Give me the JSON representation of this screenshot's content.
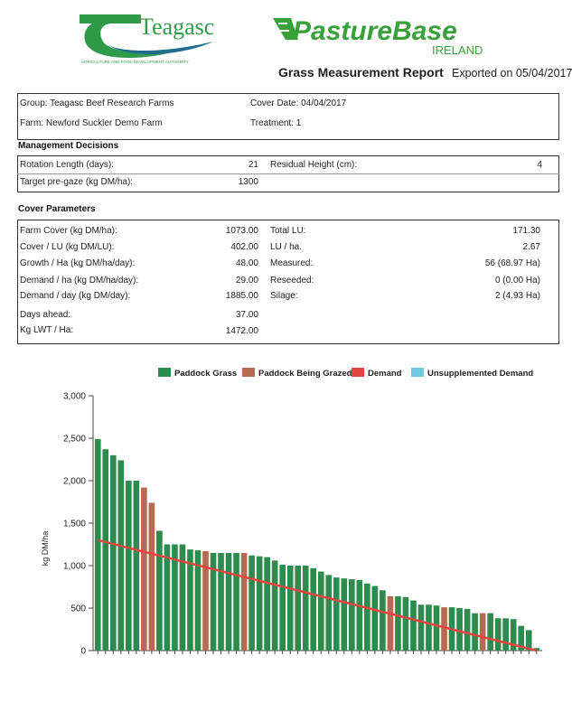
{
  "header": {
    "teagasc_logo_text": "Teagasc",
    "teagasc_tagline": "AGRICULTURE AND FOOD DEVELOPMENT AUTHORITY",
    "pasturebase_logo_text": "PastureBase",
    "pasturebase_sub": "IRELAND",
    "report_title": "Grass Measurement Report",
    "exported": "Exported on 05/04/2017",
    "colors": {
      "teagasc_green": "#2f9a4a",
      "teagasc_blue": "#1f6c8f",
      "pb_green": "#3aa03a"
    }
  },
  "info": {
    "group": "Group: Teagasc Beef Research Farms",
    "farm": "Farm: Newford Suckler Demo Farm",
    "cover_date": "Cover Date: 04/04/2017",
    "treatment": "Treatment: 1"
  },
  "management": {
    "heading": "Management Decisions",
    "rotation_label": "Rotation Length (days):",
    "rotation_value": "21",
    "residual_label": "Residual Height (cm):",
    "residual_value": "4",
    "target_label": "Target pre-gaze (kg DM/ha):",
    "target_value": "1300"
  },
  "cover": {
    "heading": "Cover Parameters",
    "left": [
      {
        "label": "Farm Cover (kg DM/ha):",
        "value": "1073.00"
      },
      {
        "label": "Cover / LU (kg DM/LU):",
        "value": "402.00"
      },
      {
        "label": "Growth / Ha (kg DM/ha/day):",
        "value": "48.00"
      },
      {
        "label": "Demand / ha (kg DM/ha/day):",
        "value": "29.00"
      },
      {
        "label": "Demand / day (kg DM/day):",
        "value": "1885.00"
      },
      {
        "label": "Days ahead:",
        "value": "37.00"
      },
      {
        "label": "Kg LWT / Ha:",
        "value": "1472.00"
      }
    ],
    "right": [
      {
        "label": "Total LU:",
        "value": "171.30"
      },
      {
        "label": "LU / ha.",
        "value": "2.67"
      },
      {
        "label": "Measured:",
        "value": "56 (68.97 Ha)"
      },
      {
        "label": "Reseeded:",
        "value": "0 (0.00 Ha)"
      },
      {
        "label": "Silage:",
        "value": "2 (4.93 Ha)"
      }
    ]
  },
  "chart_data": {
    "type": "bar",
    "legend": [
      "Paddock Grass",
      "Paddock Being Grazed",
      "Demand",
      "Unsupplemented Demand"
    ],
    "legend_placement": "top",
    "ylabel": "kg DM/ha",
    "ylim": [
      0,
      3000
    ],
    "yticks": [
      "0",
      "500",
      "1,000",
      "1,500",
      "2,000",
      "2,500",
      "3,000"
    ],
    "ytick_values": [
      0,
      500,
      1000,
      1500,
      2000,
      2500,
      3000
    ],
    "grid": false,
    "colors": {
      "grass": "#2e8b4e",
      "grazed": "#b56a52",
      "demand": "#e2453e",
      "unsupp": "#6ecbe3"
    },
    "values": [
      2490,
      2370,
      2300,
      2240,
      2000,
      2000,
      1920,
      1740,
      1410,
      1250,
      1250,
      1250,
      1190,
      1180,
      1170,
      1150,
      1150,
      1150,
      1150,
      1150,
      1120,
      1110,
      1100,
      1060,
      1010,
      1000,
      1000,
      1000,
      970,
      930,
      890,
      860,
      850,
      840,
      830,
      790,
      760,
      710,
      640,
      640,
      630,
      590,
      540,
      540,
      530,
      510,
      510,
      500,
      490,
      440,
      440,
      440,
      380,
      380,
      370,
      290,
      240,
      30
    ],
    "grazed": [
      6,
      7,
      14,
      19,
      38,
      45,
      50
    ],
    "demand_line": {
      "x_start_index": 0,
      "y_start": 1300,
      "x_end_index": 57,
      "y_end": 0
    }
  }
}
